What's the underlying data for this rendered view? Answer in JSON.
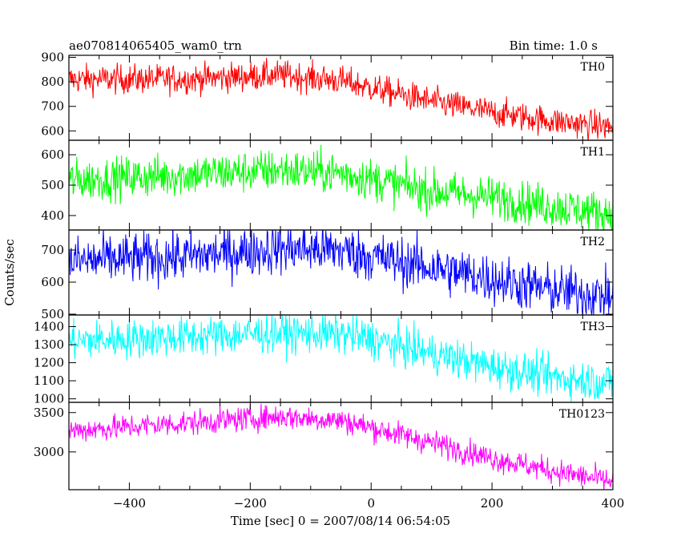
{
  "header": {
    "left_title": "ae070814065405_wam0_trn",
    "right_title": "Bin time: 1.0 s"
  },
  "chart_data": {
    "type": "line",
    "title": "ae070814065405_wam0_trn",
    "subtitle": "Bin time: 1.0 s",
    "xlabel": "Time [sec] 0 = 2007/08/14 06:54:05",
    "ylabel": "Counts/sec",
    "xlim": [
      -500,
      400
    ],
    "xticks": [
      -400,
      -200,
      0,
      200,
      400
    ],
    "grid": false,
    "panels": [
      {
        "name": "TH0",
        "color": "#ff0000",
        "ylim": [
          565,
          905
        ],
        "yticks": [
          600,
          700,
          800,
          900
        ],
        "trend_x": [
          -500,
          -300,
          -150,
          -50,
          0,
          100,
          200,
          300,
          400
        ],
        "trend_y": [
          810,
          812,
          828,
          805,
          775,
          720,
          675,
          640,
          615
        ],
        "noise": 30
      },
      {
        "name": "TH1",
        "color": "#00ff00",
        "ylim": [
          355,
          645
        ],
        "yticks": [
          400,
          500,
          600
        ],
        "trend_x": [
          -500,
          -300,
          -150,
          -50,
          0,
          100,
          200,
          300,
          400
        ],
        "trend_y": [
          515,
          535,
          550,
          540,
          520,
          480,
          460,
          430,
          405
        ],
        "noise": 35
      },
      {
        "name": "TH2",
        "color": "#0000ff",
        "ylim": [
          500,
          760
        ],
        "yticks": [
          500,
          600,
          700
        ],
        "trend_x": [
          -500,
          -300,
          -150,
          -50,
          0,
          100,
          200,
          300,
          400
        ],
        "trend_y": [
          665,
          680,
          705,
          700,
          680,
          645,
          610,
          575,
          555
        ],
        "noise": 40
      },
      {
        "name": "TH3",
        "color": "#00ffff",
        "ylim": [
          985,
          1460
        ],
        "yticks": [
          1000,
          1100,
          1200,
          1300,
          1400
        ],
        "trend_x": [
          -500,
          -300,
          -150,
          -50,
          0,
          100,
          200,
          300,
          400
        ],
        "trend_y": [
          1320,
          1345,
          1365,
          1360,
          1330,
          1250,
          1180,
          1120,
          1090
        ],
        "noise": 55
      },
      {
        "name": "TH0123",
        "color": "#ff00ff",
        "ylim": [
          2530,
          3620
        ],
        "yticks": [
          3000,
          3500
        ],
        "trend_x": [
          -500,
          -300,
          -150,
          -50,
          0,
          100,
          200,
          300,
          400
        ],
        "trend_y": [
          3270,
          3370,
          3450,
          3400,
          3310,
          3120,
          2920,
          2760,
          2620
        ],
        "noise": 80
      }
    ]
  }
}
